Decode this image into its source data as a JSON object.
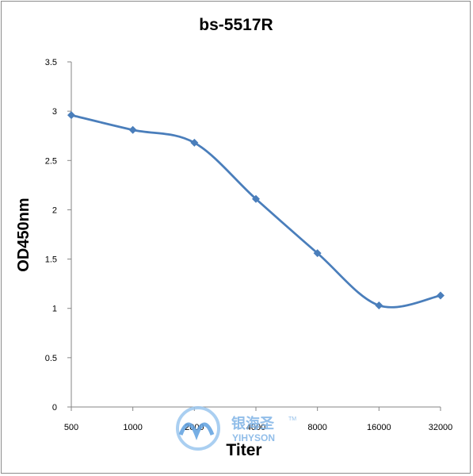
{
  "chart_data": {
    "type": "line",
    "title": "bs-5517R",
    "xlabel": "Titer",
    "ylabel": "OD450nm",
    "categories": [
      "500",
      "1000",
      "2000",
      "4000",
      "8000",
      "16000",
      "32000"
    ],
    "series": [
      {
        "values": [
          2.96,
          2.81,
          2.68,
          2.11,
          1.56,
          1.03,
          1.13
        ]
      }
    ],
    "ylim": [
      0,
      3.5
    ],
    "yticks": [
      "0",
      "0.5",
      "1",
      "1.5",
      "2",
      "2.5",
      "3",
      "3.5"
    ],
    "grid": false,
    "legend": "none",
    "line_color": "#4a7ebb"
  },
  "watermark": {
    "cn": "银海圣",
    "en": "YIHYSON",
    "tm": "TM"
  }
}
